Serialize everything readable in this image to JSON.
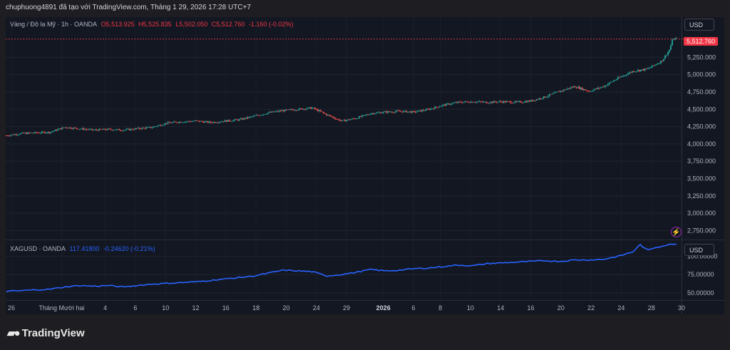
{
  "header": {
    "caption": "chuphuong4891 đã tạo với TradingView.com, Tháng 1 29, 2026 17:28 UTC+7"
  },
  "main_pane": {
    "symbol": "Vàng / Đô la Mỹ · 1h · OANDA",
    "O": "O5,513.925",
    "H": "H5,525.835",
    "L": "L5,502.050",
    "C": "C5,512.760",
    "change": "-1.160 (-0.02%)",
    "currency": "USD",
    "last_price": "5,512.760"
  },
  "sub_pane": {
    "symbol": "XAGUSD · OANDA",
    "value": "117.41800",
    "change": "-0.24620 (-0.21%)",
    "currency": "USD"
  },
  "colors": {
    "up": "#26a69a",
    "down": "#ef5350",
    "silver_line": "#2962ff",
    "price_line": "#f23645"
  },
  "footer": {
    "brand": "TradingView"
  },
  "chart_data": [
    {
      "type": "candlestick",
      "series": [
        {
          "name": "Vàng / Đô la Mỹ"
        }
      ],
      "y_ticks": [
        2750,
        3000,
        3250,
        3500,
        3750,
        4000,
        4250,
        4500,
        4750,
        5000,
        5250
      ],
      "y_tick_labels": [
        "2,750.000",
        "3,000.000",
        "3,250.000",
        "3,500.000",
        "3,750.000",
        "4,000.000",
        "4,250.000",
        "4,500.000",
        "4,750.000",
        "5,000.000",
        "5,250.000"
      ],
      "ylim": [
        2620,
        5830
      ],
      "approx_path": [
        [
          0,
          4120
        ],
        [
          2,
          4150
        ],
        [
          4,
          4160
        ],
        [
          6,
          4170
        ],
        [
          8,
          4240
        ],
        [
          10,
          4220
        ],
        [
          12,
          4200
        ],
        [
          14,
          4210
        ],
        [
          16,
          4200
        ],
        [
          18,
          4220
        ],
        [
          20,
          4240
        ],
        [
          22,
          4300
        ],
        [
          24,
          4320
        ],
        [
          26,
          4330
        ],
        [
          28,
          4310
        ],
        [
          30,
          4330
        ],
        [
          32,
          4350
        ],
        [
          34,
          4400
        ],
        [
          36,
          4450
        ],
        [
          38,
          4480
        ],
        [
          40,
          4500
        ],
        [
          42,
          4520
        ],
        [
          44,
          4420
        ],
        [
          46,
          4330
        ],
        [
          48,
          4370
        ],
        [
          50,
          4440
        ],
        [
          52,
          4460
        ],
        [
          54,
          4470
        ],
        [
          56,
          4460
        ],
        [
          58,
          4500
        ],
        [
          60,
          4560
        ],
        [
          62,
          4600
        ],
        [
          64,
          4610
        ],
        [
          66,
          4600
        ],
        [
          68,
          4610
        ],
        [
          70,
          4600
        ],
        [
          72,
          4620
        ],
        [
          74,
          4680
        ],
        [
          76,
          4760
        ],
        [
          78,
          4830
        ],
        [
          80,
          4760
        ],
        [
          82,
          4830
        ],
        [
          84,
          4950
        ],
        [
          86,
          5050
        ],
        [
          88,
          5080
        ],
        [
          90,
          5200
        ],
        [
          91,
          5350
        ],
        [
          91.5,
          5520
        ],
        [
          92,
          5512
        ]
      ]
    },
    {
      "type": "line",
      "series": [
        {
          "name": "XAGUSD"
        }
      ],
      "y_ticks": [
        50,
        75,
        100
      ],
      "y_tick_labels": [
        "50.00000",
        "75.00000",
        "100.00000"
      ],
      "ylim": [
        40,
        122
      ],
      "approx_path": [
        [
          0,
          52
        ],
        [
          4,
          54
        ],
        [
          6,
          55
        ],
        [
          8,
          58
        ],
        [
          10,
          60
        ],
        [
          12,
          59
        ],
        [
          14,
          60
        ],
        [
          16,
          58
        ],
        [
          18,
          60
        ],
        [
          20,
          62
        ],
        [
          22,
          63
        ],
        [
          24,
          64
        ],
        [
          26,
          65
        ],
        [
          28,
          67
        ],
        [
          30,
          69
        ],
        [
          32,
          71
        ],
        [
          34,
          73
        ],
        [
          36,
          77
        ],
        [
          38,
          81
        ],
        [
          40,
          80
        ],
        [
          42,
          79
        ],
        [
          44,
          73
        ],
        [
          46,
          75
        ],
        [
          48,
          78
        ],
        [
          50,
          82
        ],
        [
          52,
          80
        ],
        [
          54,
          81
        ],
        [
          56,
          83
        ],
        [
          58,
          84
        ],
        [
          60,
          86
        ],
        [
          62,
          88
        ],
        [
          64,
          87
        ],
        [
          66,
          90
        ],
        [
          68,
          91
        ],
        [
          70,
          92
        ],
        [
          72,
          93
        ],
        [
          74,
          94
        ],
        [
          76,
          93
        ],
        [
          78,
          95
        ],
        [
          80,
          95
        ],
        [
          82,
          96
        ],
        [
          84,
          100
        ],
        [
          86,
          106
        ],
        [
          87,
          116
        ],
        [
          88,
          108
        ],
        [
          89,
          112
        ],
        [
          90,
          114
        ],
        [
          91,
          116
        ],
        [
          92,
          117.4
        ]
      ]
    }
  ],
  "x_axis": {
    "labels": [
      "26",
      "Tháng Mười hai",
      "4",
      "6",
      "10",
      "12",
      "16",
      "18",
      "20",
      "24",
      "29",
      "2026",
      "6",
      "8",
      "10",
      "14",
      "16",
      "20",
      "22",
      "24",
      "28",
      "30"
    ],
    "positions": [
      0,
      7.5,
      14,
      18.5,
      23,
      27.5,
      32,
      36.5,
      41,
      45.5,
      50,
      55.5,
      60,
      64,
      68.5,
      73,
      77.5,
      82,
      86.5,
      91,
      95.5,
      100
    ]
  }
}
